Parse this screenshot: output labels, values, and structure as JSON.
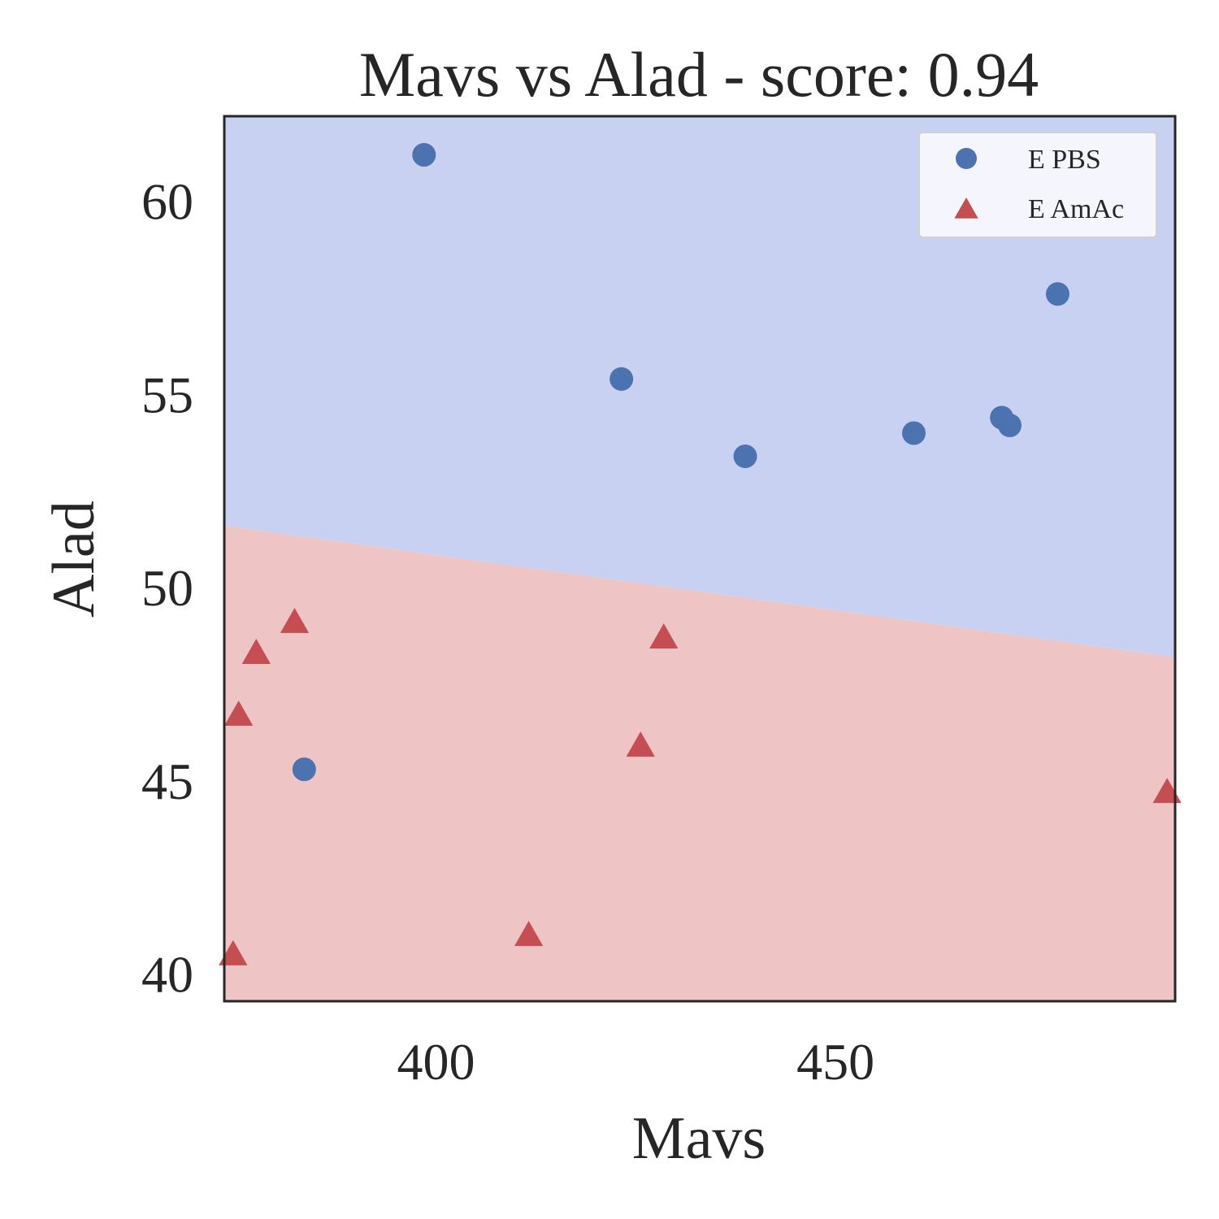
{
  "chart_data": {
    "type": "scatter",
    "title": "Mavs vs Alad - score: 0.94",
    "xlabel": "Mavs",
    "ylabel": "Alad",
    "xlim": [
      373.5,
      492.5
    ],
    "ylim": [
      39.3,
      62.2
    ],
    "xticks": [
      400,
      450
    ],
    "yticks": [
      40,
      45,
      50,
      55,
      60
    ],
    "grid": false,
    "legend_position": "top-right",
    "decision_boundary": {
      "points": [
        [
          373.5,
          51.6
        ],
        [
          492.5,
          48.2
        ]
      ],
      "upper_region_color": "#c8d1f2",
      "lower_region_color": "#eec4c4"
    },
    "series": [
      {
        "name": "E PBS",
        "marker": "circle",
        "color": "#4c72b0",
        "points": [
          [
            398.5,
            61.2
          ],
          [
            423.2,
            55.4
          ],
          [
            438.7,
            53.4
          ],
          [
            459.8,
            54.0
          ],
          [
            470.8,
            54.4
          ],
          [
            471.8,
            54.2
          ],
          [
            477.8,
            57.6
          ],
          [
            383.5,
            45.3
          ]
        ]
      },
      {
        "name": "E AmAc",
        "marker": "triangle",
        "color": "#c44e52",
        "points": [
          [
            382.3,
            49.1
          ],
          [
            377.5,
            48.3
          ],
          [
            375.3,
            46.7
          ],
          [
            374.6,
            40.5
          ],
          [
            411.6,
            41.0
          ],
          [
            428.5,
            48.7
          ],
          [
            425.6,
            45.9
          ],
          [
            491.5,
            44.7
          ]
        ]
      }
    ]
  }
}
